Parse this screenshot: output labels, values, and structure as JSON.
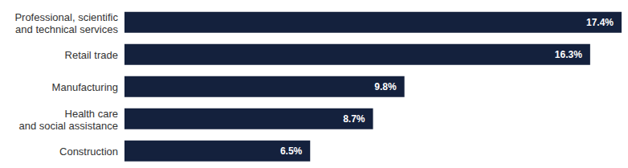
{
  "chart_data": {
    "type": "bar",
    "orientation": "horizontal",
    "categories": [
      "Professional, scientific and technical services",
      "Retail trade",
      "Manufacturing",
      "Health care and social assistance",
      "Construction"
    ],
    "values": [
      17.4,
      16.3,
      9.8,
      8.7,
      6.5
    ],
    "value_labels": [
      "17.4%",
      "16.3%",
      "9.8%",
      "8.7%",
      "6.5%"
    ],
    "data_labels": true,
    "color": "#14213d",
    "xlim": [
      0,
      17.4
    ],
    "tick_labels": "y",
    "grid": false
  }
}
